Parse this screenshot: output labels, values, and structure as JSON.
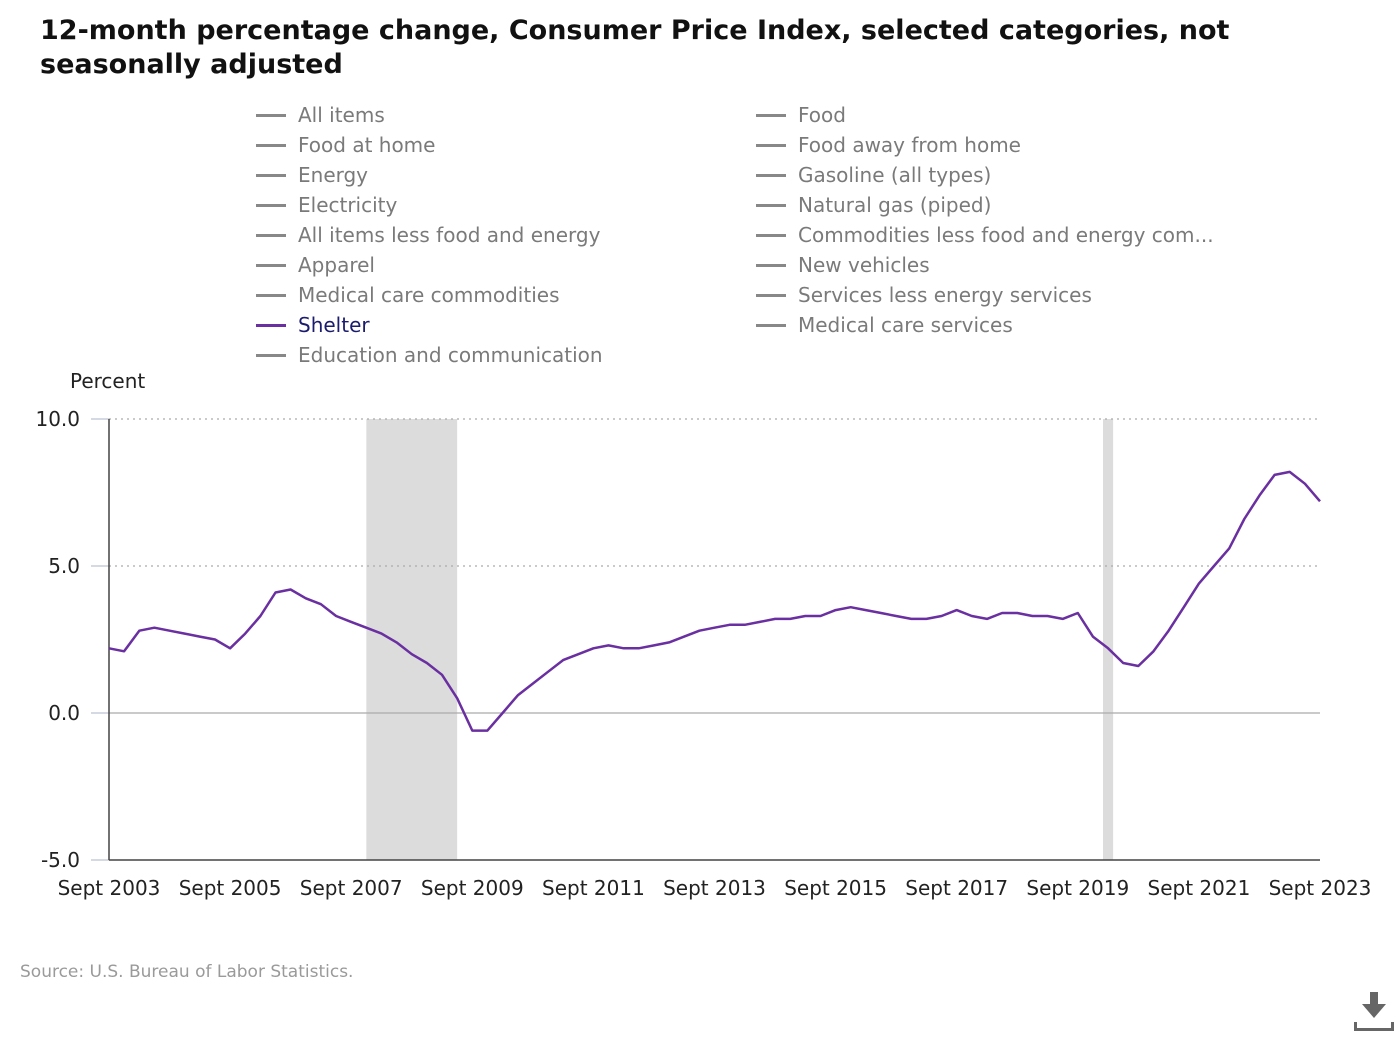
{
  "title": "12-month percentage change, Consumer Price Index, selected categories, not seasonally adjusted",
  "source": "Source: U.S. Bureau of Labor Statistics.",
  "legend": [
    {
      "label": "All items",
      "active": false
    },
    {
      "label": "Food",
      "active": false
    },
    {
      "label": "Food at home",
      "active": false
    },
    {
      "label": "Food away from home",
      "active": false
    },
    {
      "label": "Energy",
      "active": false
    },
    {
      "label": "Gasoline (all types)",
      "active": false
    },
    {
      "label": "Electricity",
      "active": false
    },
    {
      "label": "Natural gas (piped)",
      "active": false
    },
    {
      "label": "All items less food and energy",
      "active": false
    },
    {
      "label": "Commodities less food and energy com...",
      "active": false
    },
    {
      "label": "Apparel",
      "active": false
    },
    {
      "label": "New vehicles",
      "active": false
    },
    {
      "label": "Medical care commodities",
      "active": false
    },
    {
      "label": "Services less energy services",
      "active": false
    },
    {
      "label": "Shelter",
      "active": true
    },
    {
      "label": "Medical care services",
      "active": false
    },
    {
      "label": "Education and communication",
      "active": false
    }
  ],
  "colors": {
    "shelter": "#6a2fa0",
    "legend_inactive_swatch": "#888888",
    "legend_inactive_text": "#7a7a7a",
    "legend_active_text": "#1c1c6e",
    "recession_band": "#dcdcdc",
    "gridline": "#aaaaaa",
    "axis": "#444444"
  },
  "chart_data": {
    "type": "line",
    "ylabel": "Percent",
    "ylim": [
      -5.0,
      10.0
    ],
    "y_ticks": [
      "10.0",
      "5.0",
      "0.0",
      "-5.0"
    ],
    "y_tick_values": [
      10,
      5,
      0,
      -5
    ],
    "x_tick_labels": [
      "Sept 2003",
      "Sept 2005",
      "Sept 2007",
      "Sept 2009",
      "Sept 2011",
      "Sept 2013",
      "Sept 2015",
      "Sept 2017",
      "Sept 2019",
      "Sept 2021",
      "Sept 2023"
    ],
    "x_tick_values": [
      "2003-09",
      "2005-09",
      "2007-09",
      "2009-09",
      "2011-09",
      "2013-09",
      "2015-09",
      "2017-09",
      "2019-09",
      "2021-09",
      "2023-09"
    ],
    "x_range": [
      "2003-09",
      "2023-09"
    ],
    "grid": true,
    "recessions": [
      {
        "start": "2007-12",
        "end": "2009-06"
      },
      {
        "start": "2020-02",
        "end": "2020-04"
      }
    ],
    "series": [
      {
        "name": "Shelter",
        "x": [
          "2003-09",
          "2003-12",
          "2004-03",
          "2004-06",
          "2004-09",
          "2004-12",
          "2005-03",
          "2005-06",
          "2005-09",
          "2005-12",
          "2006-03",
          "2006-06",
          "2006-09",
          "2006-12",
          "2007-03",
          "2007-06",
          "2007-09",
          "2007-12",
          "2008-03",
          "2008-06",
          "2008-09",
          "2008-12",
          "2009-03",
          "2009-06",
          "2009-09",
          "2009-12",
          "2010-03",
          "2010-06",
          "2010-09",
          "2010-12",
          "2011-03",
          "2011-06",
          "2011-09",
          "2011-12",
          "2012-03",
          "2012-06",
          "2012-09",
          "2012-12",
          "2013-03",
          "2013-06",
          "2013-09",
          "2013-12",
          "2014-03",
          "2014-06",
          "2014-09",
          "2014-12",
          "2015-03",
          "2015-06",
          "2015-09",
          "2015-12",
          "2016-03",
          "2016-06",
          "2016-09",
          "2016-12",
          "2017-03",
          "2017-06",
          "2017-09",
          "2017-12",
          "2018-03",
          "2018-06",
          "2018-09",
          "2018-12",
          "2019-03",
          "2019-06",
          "2019-09",
          "2019-12",
          "2020-03",
          "2020-06",
          "2020-09",
          "2020-12",
          "2021-03",
          "2021-06",
          "2021-09",
          "2021-12",
          "2022-03",
          "2022-06",
          "2022-09",
          "2022-12",
          "2023-03",
          "2023-06",
          "2023-09"
        ],
        "y": [
          2.2,
          2.1,
          2.8,
          2.9,
          2.8,
          2.7,
          2.6,
          2.5,
          2.2,
          2.7,
          3.3,
          4.1,
          4.2,
          3.9,
          3.7,
          3.3,
          3.1,
          2.9,
          2.7,
          2.4,
          2.0,
          1.7,
          1.3,
          0.5,
          -0.6,
          -0.6,
          0.0,
          0.6,
          1.0,
          1.4,
          1.8,
          2.0,
          2.2,
          2.3,
          2.2,
          2.2,
          2.3,
          2.4,
          2.6,
          2.8,
          2.9,
          3.0,
          3.0,
          3.1,
          3.2,
          3.2,
          3.3,
          3.3,
          3.5,
          3.6,
          3.5,
          3.4,
          3.3,
          3.2,
          3.2,
          3.3,
          3.5,
          3.3,
          3.2,
          3.4,
          3.4,
          3.3,
          3.3,
          3.2,
          3.4,
          2.6,
          2.2,
          1.7,
          1.6,
          2.1,
          2.8,
          3.6,
          4.4,
          5.0,
          5.6,
          6.6,
          7.4,
          8.1,
          8.2,
          7.8,
          7.2
        ]
      }
    ]
  }
}
